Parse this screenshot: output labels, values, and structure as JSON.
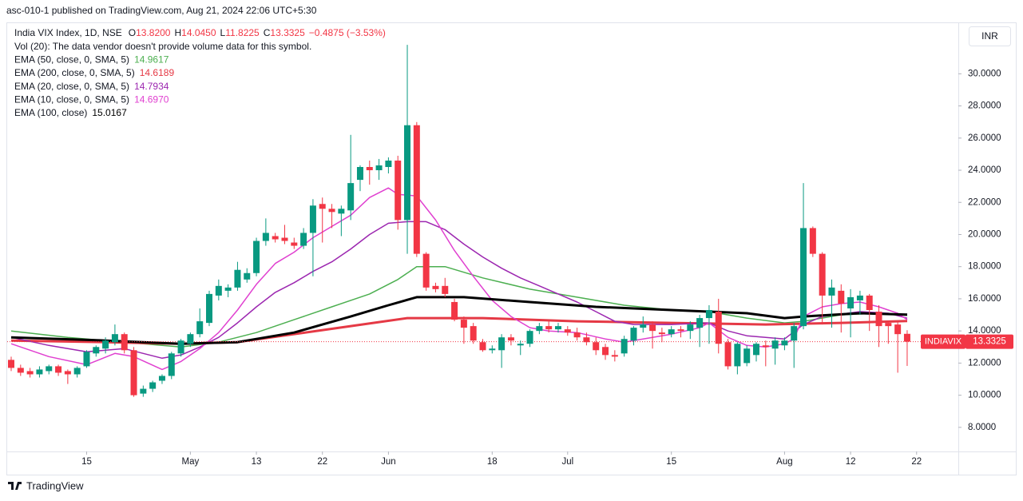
{
  "header": {
    "published": "asc-010-1 published on TradingView.com, Aug 21, 2024 22:06 UTC+5:30"
  },
  "currency_button": "INR",
  "footer": {
    "brand": "TradingView"
  },
  "chart_data": {
    "type": "candlestick",
    "symbol": "India VIX Index, 1D, NSE",
    "ohlc_legend": [
      {
        "label": "O",
        "value": "13.8200"
      },
      {
        "label": "H",
        "value": "14.0450"
      },
      {
        "label": "L",
        "value": "11.8225"
      },
      {
        "label": "C",
        "value": "13.3325"
      }
    ],
    "change": "−0.4875 (−3.53%)",
    "volume_note": "Vol (20): The data vendor doesn't provide volume data for this symbol.",
    "up_color": "#089981",
    "down_color": "#f23645",
    "ohlc": [
      [
        12.2,
        12.4,
        11.5,
        11.7
      ],
      [
        11.7,
        11.9,
        11.2,
        11.4
      ],
      [
        11.5,
        11.7,
        11.1,
        11.3
      ],
      [
        11.3,
        11.8,
        11.1,
        11.6
      ],
      [
        11.5,
        11.9,
        11.3,
        11.8
      ],
      [
        11.8,
        11.9,
        11.2,
        11.4
      ],
      [
        11.5,
        11.6,
        10.7,
        11.3
      ],
      [
        11.3,
        11.8,
        11.1,
        11.7
      ],
      [
        11.8,
        12.8,
        11.7,
        12.7
      ],
      [
        12.6,
        13.1,
        12.4,
        13.0
      ],
      [
        12.9,
        13.6,
        12.6,
        13.4
      ],
      [
        13.3,
        14.4,
        13.1,
        13.8
      ],
      [
        13.8,
        13.9,
        12.6,
        12.8
      ],
      [
        12.8,
        13.0,
        9.9,
        10.0
      ],
      [
        10.1,
        10.6,
        9.9,
        10.4
      ],
      [
        10.4,
        10.9,
        10.2,
        10.8
      ],
      [
        10.9,
        11.3,
        10.7,
        11.2
      ],
      [
        11.2,
        12.7,
        11.0,
        12.6
      ],
      [
        12.6,
        13.5,
        12.4,
        13.4
      ],
      [
        13.2,
        13.9,
        13.0,
        13.8
      ],
      [
        13.8,
        15.4,
        13.6,
        14.6
      ],
      [
        14.5,
        16.5,
        14.3,
        16.3
      ],
      [
        16.2,
        17.2,
        15.9,
        16.8
      ],
      [
        16.5,
        16.9,
        16.1,
        16.7
      ],
      [
        16.7,
        18.3,
        16.5,
        17.8
      ],
      [
        17.2,
        17.9,
        17.0,
        17.6
      ],
      [
        17.6,
        19.8,
        17.4,
        19.6
      ],
      [
        19.6,
        21.0,
        19.3,
        20.1
      ],
      [
        19.9,
        20.1,
        19.5,
        19.7
      ],
      [
        19.8,
        20.6,
        19.4,
        19.6
      ],
      [
        19.5,
        19.8,
        19.1,
        19.3
      ],
      [
        19.3,
        20.4,
        19.1,
        20.1
      ],
      [
        20.1,
        22.2,
        17.4,
        21.8
      ],
      [
        21.9,
        22.3,
        19.5,
        21.6
      ],
      [
        21.6,
        21.9,
        20.4,
        21.4
      ],
      [
        21.3,
        21.8,
        19.9,
        21.6
      ],
      [
        21.5,
        26.2,
        20.9,
        23.2
      ],
      [
        23.4,
        24.3,
        22.7,
        24.2
      ],
      [
        24.2,
        24.6,
        23.1,
        24.0
      ],
      [
        24.0,
        24.7,
        23.4,
        24.3
      ],
      [
        24.2,
        24.8,
        23.8,
        24.6
      ],
      [
        24.6,
        24.9,
        20.3,
        20.9
      ],
      [
        20.9,
        31.8,
        18.8,
        26.8
      ],
      [
        26.8,
        27.0,
        18.6,
        18.8
      ],
      [
        18.8,
        18.9,
        16.5,
        16.7
      ],
      [
        16.8,
        17.0,
        16.4,
        16.6
      ],
      [
        16.8,
        17.3,
        16.1,
        16.3
      ],
      [
        15.8,
        16.0,
        14.6,
        14.7
      ],
      [
        14.7,
        14.9,
        13.2,
        14.2
      ],
      [
        14.3,
        14.5,
        13.2,
        13.4
      ],
      [
        13.3,
        13.5,
        12.7,
        12.8
      ],
      [
        12.8,
        13.1,
        12.6,
        12.9
      ],
      [
        12.8,
        13.8,
        11.7,
        13.6
      ],
      [
        13.6,
        13.8,
        13.1,
        13.4
      ],
      [
        13.1,
        13.4,
        12.5,
        13.2
      ],
      [
        13.2,
        14.1,
        13.0,
        14.0
      ],
      [
        14.0,
        14.5,
        13.8,
        14.3
      ],
      [
        14.3,
        14.6,
        13.9,
        14.1
      ],
      [
        14.1,
        14.5,
        13.9,
        14.3
      ],
      [
        14.1,
        14.3,
        13.7,
        13.9
      ],
      [
        13.9,
        14.2,
        13.4,
        13.6
      ],
      [
        13.6,
        13.9,
        13.1,
        13.3
      ],
      [
        13.3,
        13.6,
        12.5,
        12.8
      ],
      [
        13.0,
        13.2,
        12.2,
        12.5
      ],
      [
        12.5,
        12.8,
        12.1,
        12.4
      ],
      [
        12.6,
        13.7,
        12.4,
        13.5
      ],
      [
        13.4,
        14.3,
        13.1,
        14.2
      ],
      [
        14.2,
        14.9,
        13.9,
        14.4
      ],
      [
        14.4,
        14.6,
        12.9,
        14.0
      ],
      [
        13.9,
        14.2,
        13.3,
        13.8
      ],
      [
        13.8,
        14.3,
        13.6,
        14.1
      ],
      [
        14.1,
        14.3,
        13.6,
        14.0
      ],
      [
        14.0,
        14.6,
        13.5,
        14.4
      ],
      [
        14.2,
        15.0,
        13.0,
        14.8
      ],
      [
        14.8,
        15.6,
        13.2,
        15.3
      ],
      [
        15.2,
        16.0,
        12.6,
        13.2
      ],
      [
        13.3,
        13.5,
        11.6,
        11.8
      ],
      [
        11.8,
        13.3,
        11.3,
        13.2
      ],
      [
        12.0,
        13.1,
        11.8,
        12.9
      ],
      [
        12.5,
        13.3,
        12.1,
        13.2
      ],
      [
        13.1,
        13.4,
        11.8,
        13.0
      ],
      [
        12.9,
        13.6,
        11.9,
        13.4
      ],
      [
        13.1,
        13.6,
        12.8,
        13.4
      ],
      [
        13.4,
        14.5,
        11.7,
        14.3
      ],
      [
        14.3,
        23.2,
        14.1,
        20.4
      ],
      [
        20.4,
        20.5,
        18.6,
        18.8
      ],
      [
        18.8,
        18.9,
        14.4,
        16.2
      ],
      [
        16.2,
        17.2,
        14.2,
        16.7
      ],
      [
        16.5,
        16.9,
        13.9,
        15.7
      ],
      [
        15.4,
        16.6,
        13.6,
        16.1
      ],
      [
        15.9,
        16.5,
        15.0,
        16.2
      ],
      [
        16.2,
        16.3,
        14.0,
        15.3
      ],
      [
        15.2,
        15.6,
        13.0,
        14.3
      ],
      [
        14.5,
        14.6,
        13.2,
        14.3
      ],
      [
        14.4,
        14.6,
        11.4,
        13.8
      ],
      [
        13.82,
        14.045,
        11.8225,
        13.3325
      ]
    ],
    "xticks": [
      {
        "value": 8,
        "label": "15"
      },
      {
        "value": 19,
        "label": "May"
      },
      {
        "value": 26,
        "label": "13"
      },
      {
        "value": 33,
        "label": "22"
      },
      {
        "value": 40,
        "label": "Jun"
      },
      {
        "value": 51,
        "label": "18"
      },
      {
        "value": 59,
        "label": "Jul"
      },
      {
        "value": 70,
        "label": "15"
      },
      {
        "value": 82,
        "label": "Aug"
      },
      {
        "value": 89,
        "label": "12"
      },
      {
        "value": 96,
        "label": "22"
      }
    ],
    "ylim": [
      6.5,
      33.1
    ],
    "yticks": [
      {
        "value": 8,
        "label": "8.0000"
      },
      {
        "value": 10,
        "label": "10.0000"
      },
      {
        "value": 12,
        "label": "12.0000"
      },
      {
        "value": 14,
        "label": "14.0000"
      },
      {
        "value": 16,
        "label": "16.0000"
      },
      {
        "value": 18,
        "label": "18.0000"
      },
      {
        "value": 20,
        "label": "20.0000"
      },
      {
        "value": 22,
        "label": "22.0000"
      },
      {
        "value": 24,
        "label": "24.0000"
      },
      {
        "value": 26,
        "label": "26.0000"
      },
      {
        "value": 28,
        "label": "28.0000"
      },
      {
        "value": 30,
        "label": "30.0000"
      }
    ],
    "indicators": [
      {
        "name": "EMA (50, close, 0, SMA, 5)",
        "last_label": "14.9617",
        "color": "#4caf50",
        "line_width": 1.5,
        "x": [
          0,
          6,
          12,
          18,
          22,
          26,
          30,
          34,
          38,
          41,
          43,
          46,
          50,
          55,
          60,
          65,
          70,
          74,
          78,
          82,
          84,
          88,
          92,
          95
        ],
        "values": [
          14.0,
          13.6,
          13.3,
          13.0,
          13.3,
          13.9,
          14.7,
          15.5,
          16.3,
          17.2,
          18.0,
          18.0,
          17.3,
          16.6,
          16.1,
          15.6,
          15.3,
          15.2,
          14.8,
          14.5,
          14.6,
          15.0,
          15.1,
          14.9617
        ]
      },
      {
        "name": "EMA (200, close, 0, SMA, 5)",
        "last_label": "14.6189",
        "color": "#e53945",
        "line_width": 3,
        "x": [
          0,
          10,
          18,
          24,
          30,
          36,
          42,
          50,
          60,
          70,
          80,
          88,
          95
        ],
        "values": [
          13.4,
          13.3,
          13.2,
          13.3,
          13.8,
          14.3,
          14.8,
          14.8,
          14.6,
          14.5,
          14.4,
          14.5,
          14.6189
        ]
      },
      {
        "name": "EMA (20, close, 0, SMA, 5)",
        "last_label": "14.7934",
        "color": "#9c27b0",
        "line_width": 1.5,
        "x": [
          0,
          4,
          8,
          12,
          16,
          18,
          20,
          22,
          24,
          26,
          28,
          30,
          32,
          34,
          36,
          38,
          40,
          42,
          44,
          46,
          48,
          50,
          52,
          54,
          56,
          58,
          60,
          62,
          64,
          66,
          70,
          74,
          76,
          78,
          82,
          84,
          86,
          90,
          93,
          95
        ],
        "values": [
          13.6,
          13.1,
          12.7,
          12.9,
          12.3,
          12.5,
          13.0,
          13.6,
          14.5,
          15.5,
          16.4,
          17.0,
          17.7,
          18.3,
          19.1,
          20.0,
          20.7,
          20.8,
          20.8,
          20.3,
          19.4,
          18.6,
          17.9,
          17.3,
          16.8,
          16.3,
          15.8,
          15.2,
          14.6,
          14.4,
          14.4,
          14.5,
          14.0,
          13.7,
          13.5,
          14.4,
          14.9,
          15.2,
          15.1,
          14.7934
        ]
      },
      {
        "name": "EMA (10, close, 0, SMA, 5)",
        "last_label": "14.6970",
        "color": "#e040d0",
        "line_width": 1.5,
        "x": [
          0,
          4,
          8,
          11,
          13,
          16,
          18,
          20,
          22,
          24,
          26,
          28,
          30,
          32,
          34,
          36,
          38,
          40,
          41,
          43,
          45,
          47,
          49,
          51,
          53,
          55,
          57,
          60,
          63,
          65,
          67,
          70,
          73,
          74,
          76,
          78,
          80,
          82,
          83,
          84,
          86,
          88,
          90,
          92,
          94,
          95
        ],
        "values": [
          13.2,
          12.4,
          11.9,
          12.6,
          12.4,
          11.6,
          12.1,
          12.9,
          13.9,
          15.3,
          16.9,
          18.2,
          18.9,
          19.8,
          20.5,
          21.2,
          22.3,
          22.9,
          22.5,
          22.4,
          20.9,
          19.0,
          17.4,
          15.9,
          14.9,
          14.2,
          14.0,
          13.9,
          13.5,
          13.3,
          13.5,
          13.8,
          14.2,
          14.5,
          13.6,
          13.1,
          13.0,
          13.2,
          13.5,
          14.9,
          15.5,
          15.7,
          15.8,
          15.5,
          15.1,
          14.697
        ]
      },
      {
        "name": "EMA (100, close)",
        "last_label": "15.0167",
        "color": "#000000",
        "line_width": 3,
        "x": [
          0,
          10,
          18,
          24,
          30,
          36,
          40,
          43,
          48,
          55,
          62,
          70,
          78,
          82,
          84,
          90,
          95
        ],
        "values": [
          13.6,
          13.4,
          13.2,
          13.3,
          13.9,
          14.9,
          15.6,
          16.1,
          16.1,
          15.8,
          15.5,
          15.3,
          15.1,
          14.8,
          14.9,
          15.1,
          15.0167
        ]
      }
    ],
    "last_price": {
      "name": "INDIAVIX",
      "label": "13.3325"
    }
  }
}
